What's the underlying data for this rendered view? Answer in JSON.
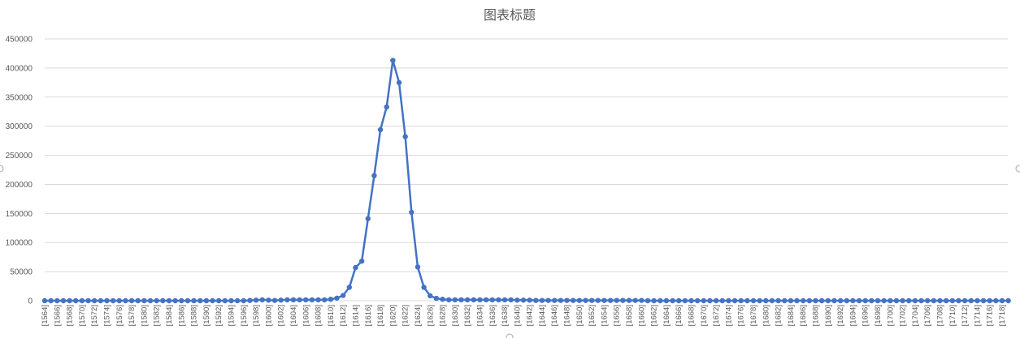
{
  "chart_data": {
    "type": "line",
    "title": "图表标题",
    "xlabel": "",
    "ylabel": "",
    "x_start": 1564,
    "x_end": 1718,
    "x_label_step": 2,
    "ylim": [
      0,
      450000
    ],
    "yticks": [
      0,
      50000,
      100000,
      150000,
      200000,
      250000,
      300000,
      350000,
      400000,
      450000
    ],
    "grid": true,
    "legend": "none",
    "series": [
      {
        "color": "#4472c4",
        "values": [
          0,
          0,
          0,
          0,
          0,
          0,
          0,
          0,
          0,
          0,
          0,
          0,
          0,
          0,
          0,
          0,
          0,
          0,
          0,
          0,
          0,
          0,
          0,
          0,
          0,
          0,
          0,
          0,
          0,
          0,
          0,
          0,
          0,
          500,
          1000,
          1500,
          1000,
          500,
          1000,
          1500,
          1500,
          1500,
          1500,
          1500,
          1500,
          1500,
          2500,
          4500,
          9000,
          23000,
          57000,
          68000,
          141000,
          215000,
          294000,
          333000,
          413000,
          375000,
          282000,
          152000,
          58000,
          23000,
          8500,
          4000,
          2500,
          1500,
          1500,
          1500,
          1500,
          1500,
          1500,
          1500,
          1500,
          1500,
          1500,
          1500,
          1000,
          1000,
          1000,
          500,
          500,
          500,
          500,
          500,
          500,
          500,
          500,
          500,
          500,
          500,
          500,
          500,
          500,
          500,
          500,
          500,
          500,
          0,
          0,
          0,
          0,
          0,
          0,
          0,
          0,
          0,
          0,
          0,
          0,
          0,
          0,
          0,
          0,
          0,
          0,
          0,
          0,
          0,
          0,
          0,
          0,
          0,
          0,
          0,
          0,
          0,
          0,
          0,
          0,
          0,
          0,
          0,
          0,
          0,
          0,
          0,
          0,
          0,
          0,
          0,
          0,
          0,
          0,
          0,
          0,
          0,
          0,
          0,
          0,
          0,
          0,
          0,
          0,
          0,
          0,
          0
        ]
      }
    ]
  }
}
